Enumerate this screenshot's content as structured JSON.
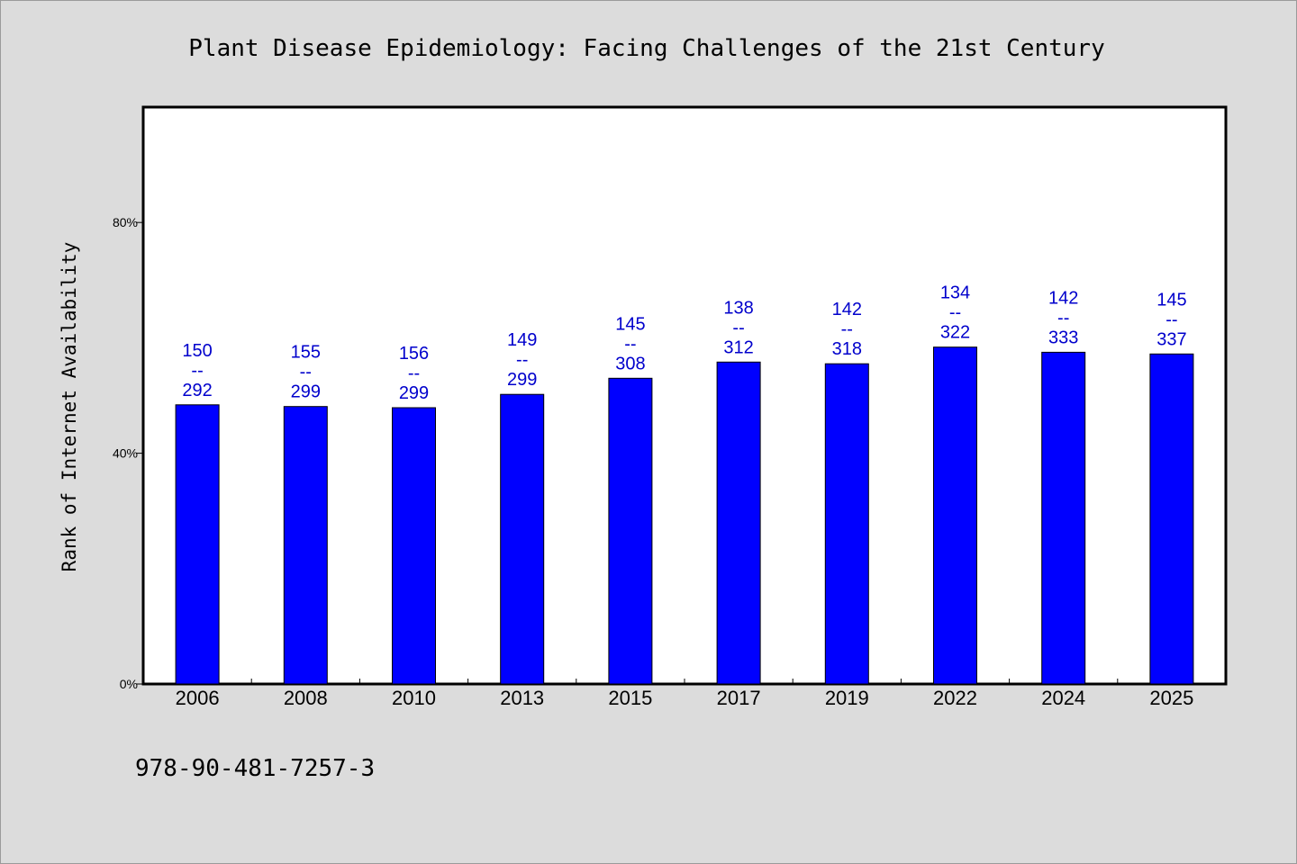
{
  "chart_data": {
    "type": "bar",
    "title": "Plant Disease Epidemiology: Facing Challenges of the 21st Century",
    "ylabel": "Rank of Internet Availability",
    "xlabel": "",
    "categories": [
      "2006",
      "2008",
      "2010",
      "2013",
      "2015",
      "2017",
      "2019",
      "2022",
      "2024",
      "2025"
    ],
    "values": [
      48.4,
      48.1,
      47.9,
      50.2,
      53.0,
      55.8,
      55.5,
      58.4,
      57.5,
      57.2
    ],
    "data_labels": [
      {
        "top": "150",
        "sep": "--",
        "bottom": "292"
      },
      {
        "top": "155",
        "sep": "--",
        "bottom": "299"
      },
      {
        "top": "156",
        "sep": "--",
        "bottom": "299"
      },
      {
        "top": "149",
        "sep": "--",
        "bottom": "299"
      },
      {
        "top": "145",
        "sep": "--",
        "bottom": "308"
      },
      {
        "top": "138",
        "sep": "--",
        "bottom": "312"
      },
      {
        "top": "142",
        "sep": "--",
        "bottom": "318"
      },
      {
        "top": "134",
        "sep": "--",
        "bottom": "322"
      },
      {
        "top": "142",
        "sep": "--",
        "bottom": "333"
      },
      {
        "top": "145",
        "sep": "--",
        "bottom": "337"
      }
    ],
    "ylim": [
      0,
      100
    ],
    "yticks": [
      0,
      40,
      80
    ],
    "ytick_labels": [
      "0%",
      "40%",
      "80%"
    ],
    "grid": false,
    "bar_color": "#0000ff",
    "label_color": "#0000cc"
  },
  "footer": {
    "isbn": "978-90-481-7257-3"
  }
}
